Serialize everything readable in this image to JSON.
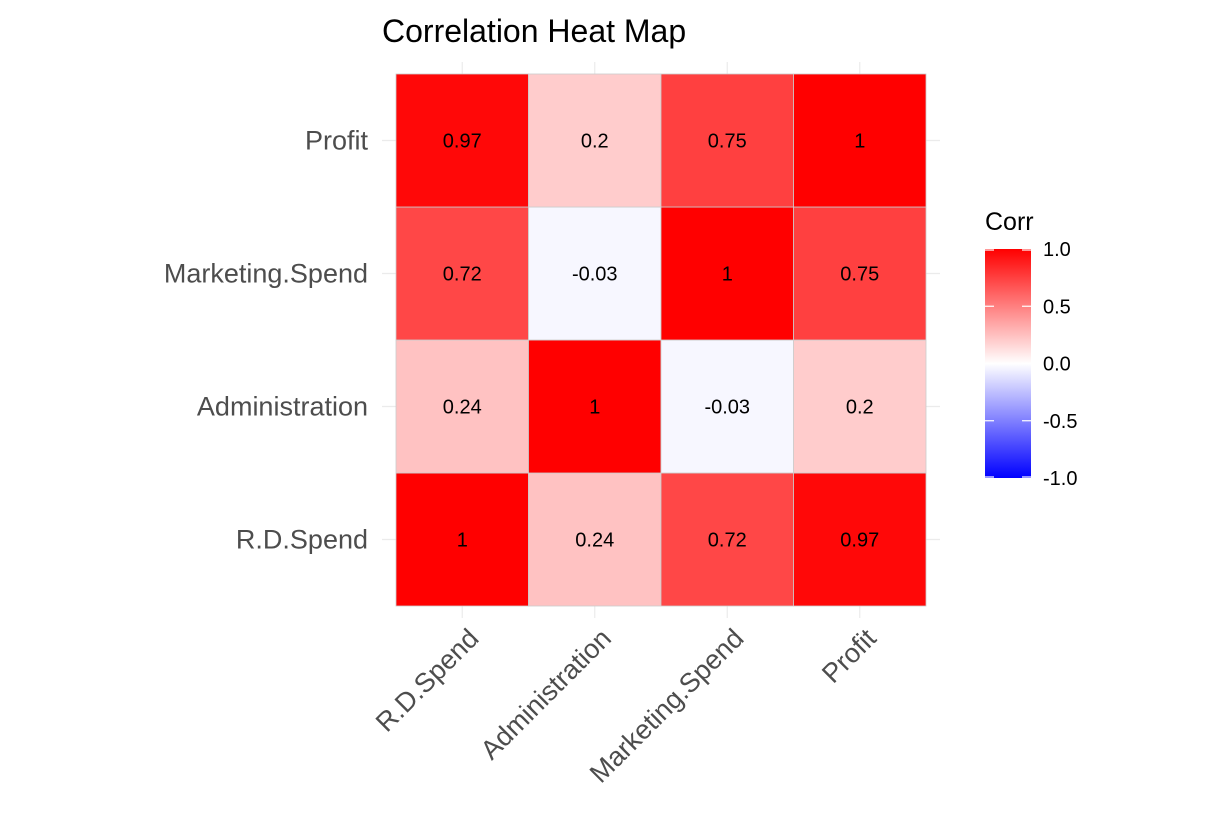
{
  "chart_data": {
    "type": "heatmap",
    "title": "Correlation Heat Map",
    "x_categories": [
      "R.D.Spend",
      "Administration",
      "Marketing.Spend",
      "Profit"
    ],
    "y_categories": [
      "R.D.Spend",
      "Administration",
      "Marketing.Spend",
      "Profit"
    ],
    "matrix": [
      [
        1,
        0.24,
        0.72,
        0.97
      ],
      [
        0.24,
        1,
        -0.03,
        0.2
      ],
      [
        0.72,
        -0.03,
        1,
        0.75
      ],
      [
        0.97,
        0.2,
        0.75,
        1
      ]
    ],
    "cell_labels": [
      [
        "1",
        "0.24",
        "0.72",
        "0.97"
      ],
      [
        "0.24",
        "1",
        "-0.03",
        "0.2"
      ],
      [
        "0.72",
        "-0.03",
        "1",
        "0.75"
      ],
      [
        "0.97",
        "0.2",
        "0.75",
        "1"
      ]
    ],
    "legend": {
      "title": "Corr",
      "ticks": [
        "1.0",
        "0.5",
        "0.0",
        "-0.5",
        "-1.0"
      ],
      "range": [
        -1,
        1
      ],
      "low_color": "#0000ff",
      "mid_color": "#ffffff",
      "high_color": "#ff0000"
    }
  }
}
